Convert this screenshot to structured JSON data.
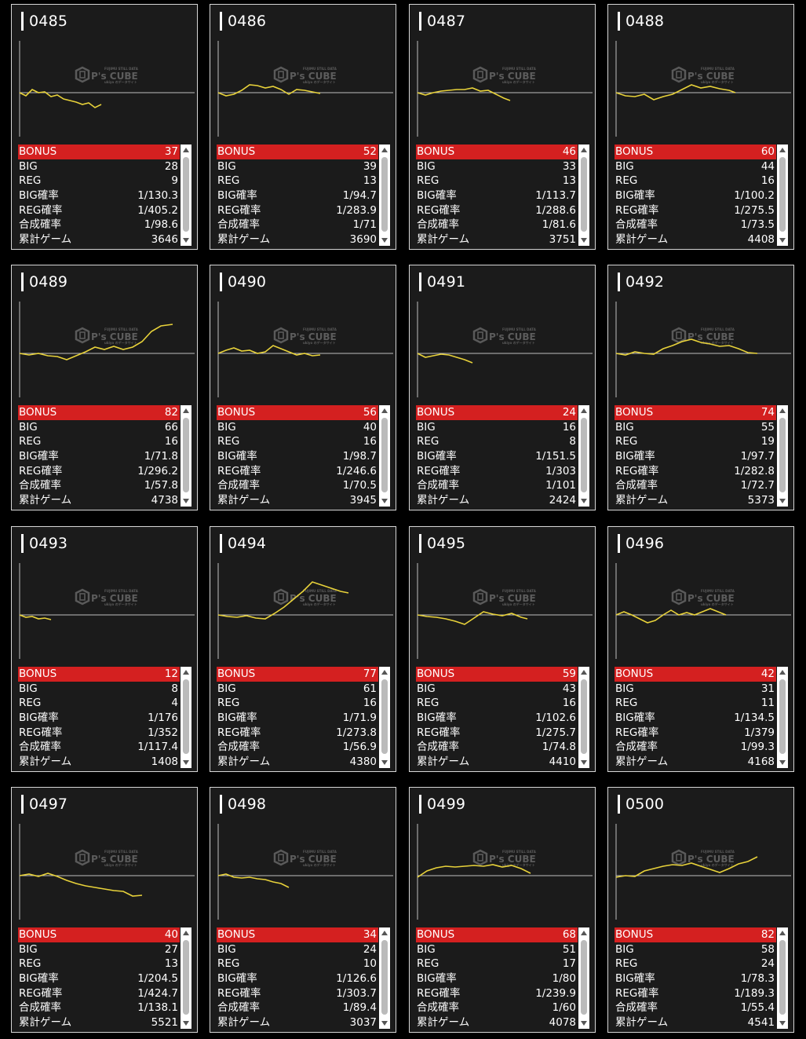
{
  "labels": {
    "bonus": "BONUS",
    "big": "BIG",
    "reg": "REG",
    "big_rate": "BIG確率",
    "reg_rate": "REG確率",
    "combined_rate": "合成確率",
    "total_games": "累計ゲーム"
  },
  "watermark": {
    "brand": "P's CUBE",
    "sub_top": "FUJIMU STILL DATA",
    "sub_bottom": "ukiyo のデータサイト"
  },
  "colors": {
    "bonus_row": "#d42020",
    "graph_line": "#e8d23a",
    "card_bg": "#1b1b1b"
  },
  "machines": [
    {
      "id": "0485",
      "bonus": "37",
      "big": "28",
      "reg": "9",
      "big_rate": "1/130.3",
      "reg_rate": "1/405.2",
      "combined_rate": "1/98.6",
      "total_games": "3646",
      "chart_data": {
        "type": "line",
        "x": [
          0,
          8,
          16,
          24,
          32,
          40,
          48,
          56,
          64,
          72,
          80,
          88,
          96,
          104
        ],
        "y": [
          0,
          -4,
          4,
          0,
          1,
          -5,
          -3,
          -8,
          -10,
          -12,
          -15,
          -13,
          -19,
          -15
        ]
      }
    },
    {
      "id": "0486",
      "bonus": "52",
      "big": "39",
      "reg": "13",
      "big_rate": "1/94.7",
      "reg_rate": "1/283.9",
      "combined_rate": "1/71",
      "total_games": "3690",
      "chart_data": {
        "type": "line",
        "x": [
          0,
          10,
          20,
          30,
          40,
          50,
          60,
          70,
          80,
          90,
          100,
          110,
          120,
          130
        ],
        "y": [
          0,
          -4,
          -2,
          3,
          10,
          9,
          6,
          8,
          4,
          -2,
          4,
          3,
          1,
          -1
        ]
      }
    },
    {
      "id": "0487",
      "bonus": "46",
      "big": "33",
      "reg": "13",
      "big_rate": "1/113.7",
      "reg_rate": "1/288.6",
      "combined_rate": "1/81.6",
      "total_games": "3751",
      "chart_data": {
        "type": "line",
        "x": [
          0,
          10,
          20,
          30,
          40,
          50,
          60,
          70,
          80,
          90,
          100,
          110,
          118
        ],
        "y": [
          0,
          -3,
          0,
          2,
          3,
          4,
          4,
          6,
          2,
          3,
          -2,
          -7,
          -10
        ]
      }
    },
    {
      "id": "0488",
      "bonus": "60",
      "big": "44",
      "reg": "16",
      "big_rate": "1/100.2",
      "reg_rate": "1/275.5",
      "combined_rate": "1/73.5",
      "total_games": "4408",
      "chart_data": {
        "type": "line",
        "x": [
          0,
          12,
          24,
          36,
          48,
          60,
          72,
          84,
          96,
          108,
          120,
          132,
          144,
          152
        ],
        "y": [
          0,
          -4,
          -5,
          -2,
          -9,
          -5,
          -2,
          4,
          10,
          6,
          8,
          5,
          3,
          0
        ]
      }
    },
    {
      "id": "0489",
      "bonus": "82",
      "big": "66",
      "reg": "16",
      "big_rate": "1/71.8",
      "reg_rate": "1/296.2",
      "combined_rate": "1/57.8",
      "total_games": "4738",
      "chart_data": {
        "type": "line",
        "x": [
          0,
          12,
          24,
          36,
          48,
          60,
          72,
          84,
          96,
          108,
          120,
          132,
          144,
          156,
          168,
          180,
          195
        ],
        "y": [
          0,
          -2,
          0,
          -3,
          -4,
          -8,
          -3,
          2,
          8,
          5,
          9,
          5,
          8,
          15,
          28,
          35,
          37
        ]
      }
    },
    {
      "id": "0490",
      "bonus": "56",
      "big": "40",
      "reg": "16",
      "big_rate": "1/98.7",
      "reg_rate": "1/246.6",
      "combined_rate": "1/70.5",
      "total_games": "3945",
      "chart_data": {
        "type": "line",
        "x": [
          0,
          10,
          20,
          30,
          40,
          50,
          60,
          70,
          80,
          90,
          100,
          110,
          120,
          130
        ],
        "y": [
          0,
          4,
          7,
          3,
          4,
          0,
          2,
          10,
          6,
          2,
          -2,
          0,
          -3,
          -2
        ]
      }
    },
    {
      "id": "0491",
      "bonus": "24",
      "big": "16",
      "reg": "8",
      "big_rate": "1/151.5",
      "reg_rate": "1/303",
      "combined_rate": "1/101",
      "total_games": "2424",
      "chart_data": {
        "type": "line",
        "x": [
          0,
          10,
          20,
          30,
          40,
          50,
          60,
          70
        ],
        "y": [
          0,
          -5,
          -3,
          -1,
          -2,
          -5,
          -8,
          -12
        ]
      }
    },
    {
      "id": "0492",
      "bonus": "74",
      "big": "55",
      "reg": "19",
      "big_rate": "1/97.7",
      "reg_rate": "1/282.8",
      "combined_rate": "1/72.7",
      "total_games": "5373",
      "chart_data": {
        "type": "line",
        "x": [
          0,
          12,
          24,
          36,
          48,
          60,
          72,
          84,
          96,
          108,
          120,
          132,
          144,
          156,
          168,
          180
        ],
        "y": [
          0,
          -2,
          2,
          0,
          -1,
          6,
          10,
          15,
          18,
          14,
          12,
          9,
          10,
          6,
          1,
          0
        ]
      }
    },
    {
      "id": "0493",
      "bonus": "12",
      "big": "8",
      "reg": "4",
      "big_rate": "1/176",
      "reg_rate": "1/352",
      "combined_rate": "1/117.4",
      "total_games": "1408",
      "chart_data": {
        "type": "line",
        "x": [
          0,
          8,
          16,
          24,
          32,
          40
        ],
        "y": [
          0,
          -3,
          -2,
          -5,
          -4,
          -6
        ]
      }
    },
    {
      "id": "0494",
      "bonus": "77",
      "big": "61",
      "reg": "16",
      "big_rate": "1/71.9",
      "reg_rate": "1/273.8",
      "combined_rate": "1/56.9",
      "total_games": "4380",
      "chart_data": {
        "type": "line",
        "x": [
          0,
          12,
          24,
          36,
          48,
          60,
          72,
          84,
          96,
          108,
          120,
          132,
          144,
          156,
          166
        ],
        "y": [
          0,
          -2,
          -3,
          -1,
          -4,
          -5,
          2,
          10,
          20,
          30,
          42,
          38,
          34,
          30,
          28
        ]
      }
    },
    {
      "id": "0495",
      "bonus": "59",
      "big": "43",
      "reg": "16",
      "big_rate": "1/102.6",
      "reg_rate": "1/275.7",
      "combined_rate": "1/74.8",
      "total_games": "4410",
      "chart_data": {
        "type": "line",
        "x": [
          0,
          12,
          24,
          36,
          48,
          60,
          72,
          84,
          96,
          108,
          120,
          132,
          140
        ],
        "y": [
          0,
          -2,
          -3,
          -5,
          -8,
          -12,
          -4,
          4,
          1,
          -1,
          2,
          -3,
          -5
        ]
      }
    },
    {
      "id": "0496",
      "bonus": "42",
      "big": "31",
      "reg": "11",
      "big_rate": "1/134.5",
      "reg_rate": "1/379",
      "combined_rate": "1/99.3",
      "total_games": "4168",
      "chart_data": {
        "type": "line",
        "x": [
          0,
          10,
          20,
          30,
          40,
          50,
          60,
          70,
          80,
          90,
          100,
          110,
          120,
          130,
          140
        ],
        "y": [
          0,
          4,
          0,
          -5,
          -10,
          -7,
          0,
          6,
          0,
          3,
          0,
          4,
          8,
          4,
          0
        ]
      }
    },
    {
      "id": "0497",
      "bonus": "40",
      "big": "27",
      "reg": "13",
      "big_rate": "1/204.5",
      "reg_rate": "1/424.7",
      "combined_rate": "1/138.1",
      "total_games": "5521",
      "chart_data": {
        "type": "line",
        "x": [
          0,
          12,
          24,
          36,
          48,
          60,
          72,
          84,
          96,
          108,
          120,
          132,
          144,
          156
        ],
        "y": [
          0,
          2,
          -1,
          3,
          -1,
          -6,
          -10,
          -13,
          -15,
          -17,
          -19,
          -20,
          -26,
          -25
        ]
      }
    },
    {
      "id": "0498",
      "bonus": "34",
      "big": "24",
      "reg": "10",
      "big_rate": "1/126.6",
      "reg_rate": "1/303.7",
      "combined_rate": "1/89.4",
      "total_games": "3037",
      "chart_data": {
        "type": "line",
        "x": [
          0,
          10,
          20,
          30,
          40,
          50,
          60,
          70,
          80,
          90
        ],
        "y": [
          0,
          2,
          -2,
          -3,
          -2,
          -4,
          -5,
          -8,
          -10,
          -15
        ]
      }
    },
    {
      "id": "0499",
      "bonus": "68",
      "big": "51",
      "reg": "17",
      "big_rate": "1/80",
      "reg_rate": "1/239.9",
      "combined_rate": "1/60",
      "total_games": "4078",
      "chart_data": {
        "type": "line",
        "x": [
          0,
          12,
          24,
          36,
          48,
          60,
          72,
          84,
          96,
          108,
          120,
          132,
          144
        ],
        "y": [
          -2,
          6,
          10,
          12,
          11,
          12,
          13,
          12,
          14,
          11,
          13,
          9,
          3
        ]
      }
    },
    {
      "id": "0500",
      "bonus": "82",
      "big": "58",
      "reg": "24",
      "big_rate": "1/78.3",
      "reg_rate": "1/189.3",
      "combined_rate": "1/55.4",
      "total_games": "4541",
      "chart_data": {
        "type": "line",
        "x": [
          0,
          12,
          24,
          36,
          48,
          60,
          72,
          84,
          96,
          108,
          120,
          132,
          144,
          156,
          168,
          180
        ],
        "y": [
          -2,
          0,
          -1,
          6,
          9,
          12,
          14,
          13,
          16,
          12,
          8,
          4,
          9,
          15,
          18,
          24
        ]
      }
    }
  ]
}
